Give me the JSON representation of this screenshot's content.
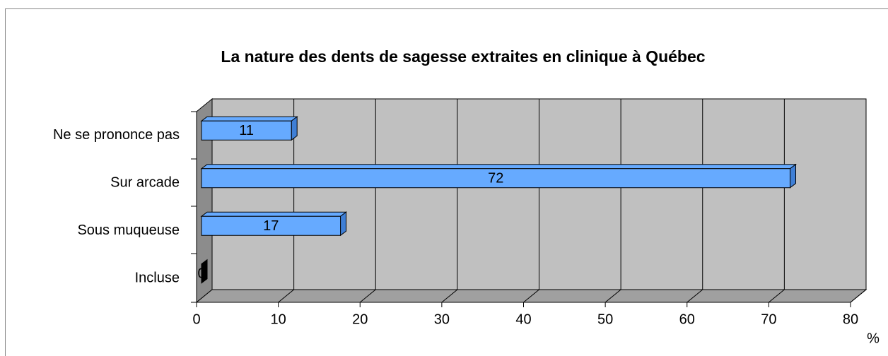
{
  "chart_data": {
    "type": "bar3d",
    "orientation": "horizontal",
    "title": "La nature des dents de sagesse extraites en clinique à Québec",
    "categories": [
      "Incluse",
      "Sous muqueuse",
      "Sur arcade",
      "Ne se prononce pas"
    ],
    "values": [
      0,
      17,
      72,
      11
    ],
    "color": "#66aaff",
    "xlabel": "%",
    "xlim": [
      0,
      80
    ],
    "xticks": [
      0,
      10,
      20,
      30,
      40,
      50,
      60,
      70,
      80
    ],
    "grid": true
  }
}
